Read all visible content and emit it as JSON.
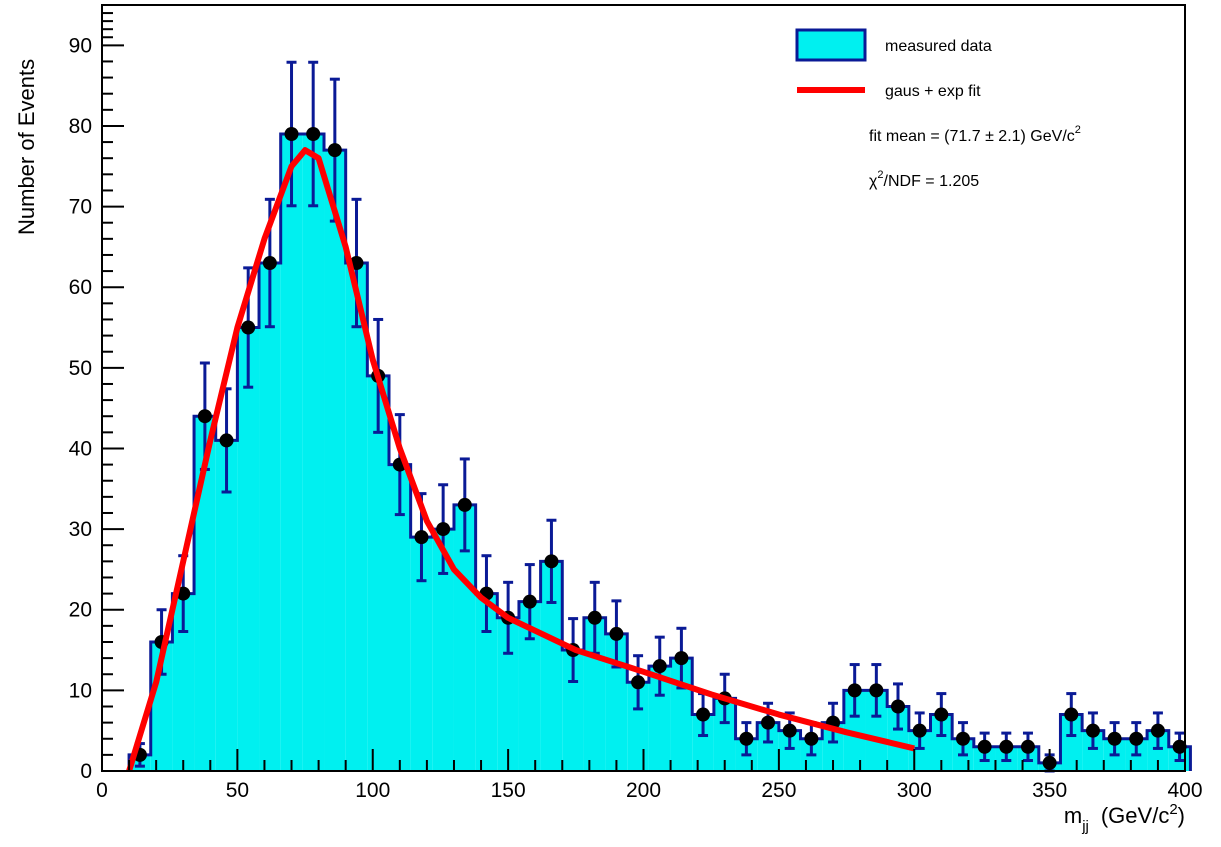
{
  "chart_data": {
    "type": "histogram",
    "y_label": "Number of Events",
    "x_label": [
      "m",
      "jj",
      "(GeV/c",
      "2",
      ")"
    ],
    "bins": [
      10,
      18,
      26,
      34,
      42,
      50,
      58,
      66,
      74,
      82,
      90,
      98,
      106,
      114,
      122,
      130,
      138,
      146,
      154,
      162,
      170,
      178,
      186,
      194,
      202,
      210,
      218,
      226,
      234,
      242,
      250,
      258,
      266,
      274,
      282,
      290,
      298,
      306,
      314,
      322,
      330,
      338,
      346,
      354,
      362,
      370,
      378,
      386,
      394,
      402
    ],
    "values": [
      2,
      16,
      22,
      44,
      41,
      55,
      63,
      79,
      79,
      77,
      63,
      49,
      38,
      29,
      30,
      33,
      22,
      19,
      21,
      26,
      15,
      19,
      17,
      11,
      13,
      14,
      7,
      9,
      4,
      6,
      5,
      4,
      6,
      10,
      10,
      8,
      5,
      7,
      4,
      3,
      3,
      3,
      1,
      7,
      5,
      4,
      4,
      5,
      3
    ],
    "errors": [
      1.4,
      4,
      4.7,
      6.6,
      6.4,
      7.4,
      7.9,
      8.9,
      8.9,
      8.8,
      7.9,
      7,
      6.2,
      5.4,
      5.5,
      5.7,
      4.7,
      4.4,
      4.6,
      5.1,
      3.9,
      4.4,
      4.1,
      3.3,
      3.6,
      3.7,
      2.6,
      3,
      2,
      2.4,
      2.2,
      2,
      2.4,
      3.2,
      3.2,
      2.8,
      2.2,
      2.6,
      2,
      1.7,
      1.7,
      1.7,
      1,
      2.6,
      2.2,
      2,
      2,
      2.2,
      1.7
    ],
    "series": [
      {
        "name": "measured data",
        "color": "#00f0f0",
        "edge_color": "#0a1a96"
      },
      {
        "name": "gaus + exp fit",
        "color": "#ff0000",
        "x": [
          10,
          20,
          30,
          40,
          50,
          60,
          70,
          75,
          80,
          90,
          100,
          110,
          120,
          130,
          140,
          150,
          175,
          200,
          225,
          250,
          275,
          300
        ],
        "values": [
          0,
          11,
          26,
          41,
          55,
          66,
          75,
          77,
          76,
          65,
          51,
          40,
          31,
          25,
          21.5,
          19,
          15,
          12.3,
          9.5,
          7,
          4.8,
          2.8
        ]
      }
    ],
    "annotations": [
      [
        "fit mean = (71.7 ± 2.1) GeV/c",
        "2"
      ],
      [
        "χ",
        "2",
        "/NDF = 1.205"
      ]
    ],
    "xlim": [
      0,
      400
    ],
    "ylim": [
      0,
      95
    ],
    "xticks": [
      0,
      50,
      100,
      150,
      200,
      250,
      300,
      350,
      400
    ],
    "yticks": [
      0,
      10,
      20,
      30,
      40,
      50,
      60,
      70,
      80,
      90
    ],
    "minor_divisions": 5,
    "legend": "top-right"
  }
}
